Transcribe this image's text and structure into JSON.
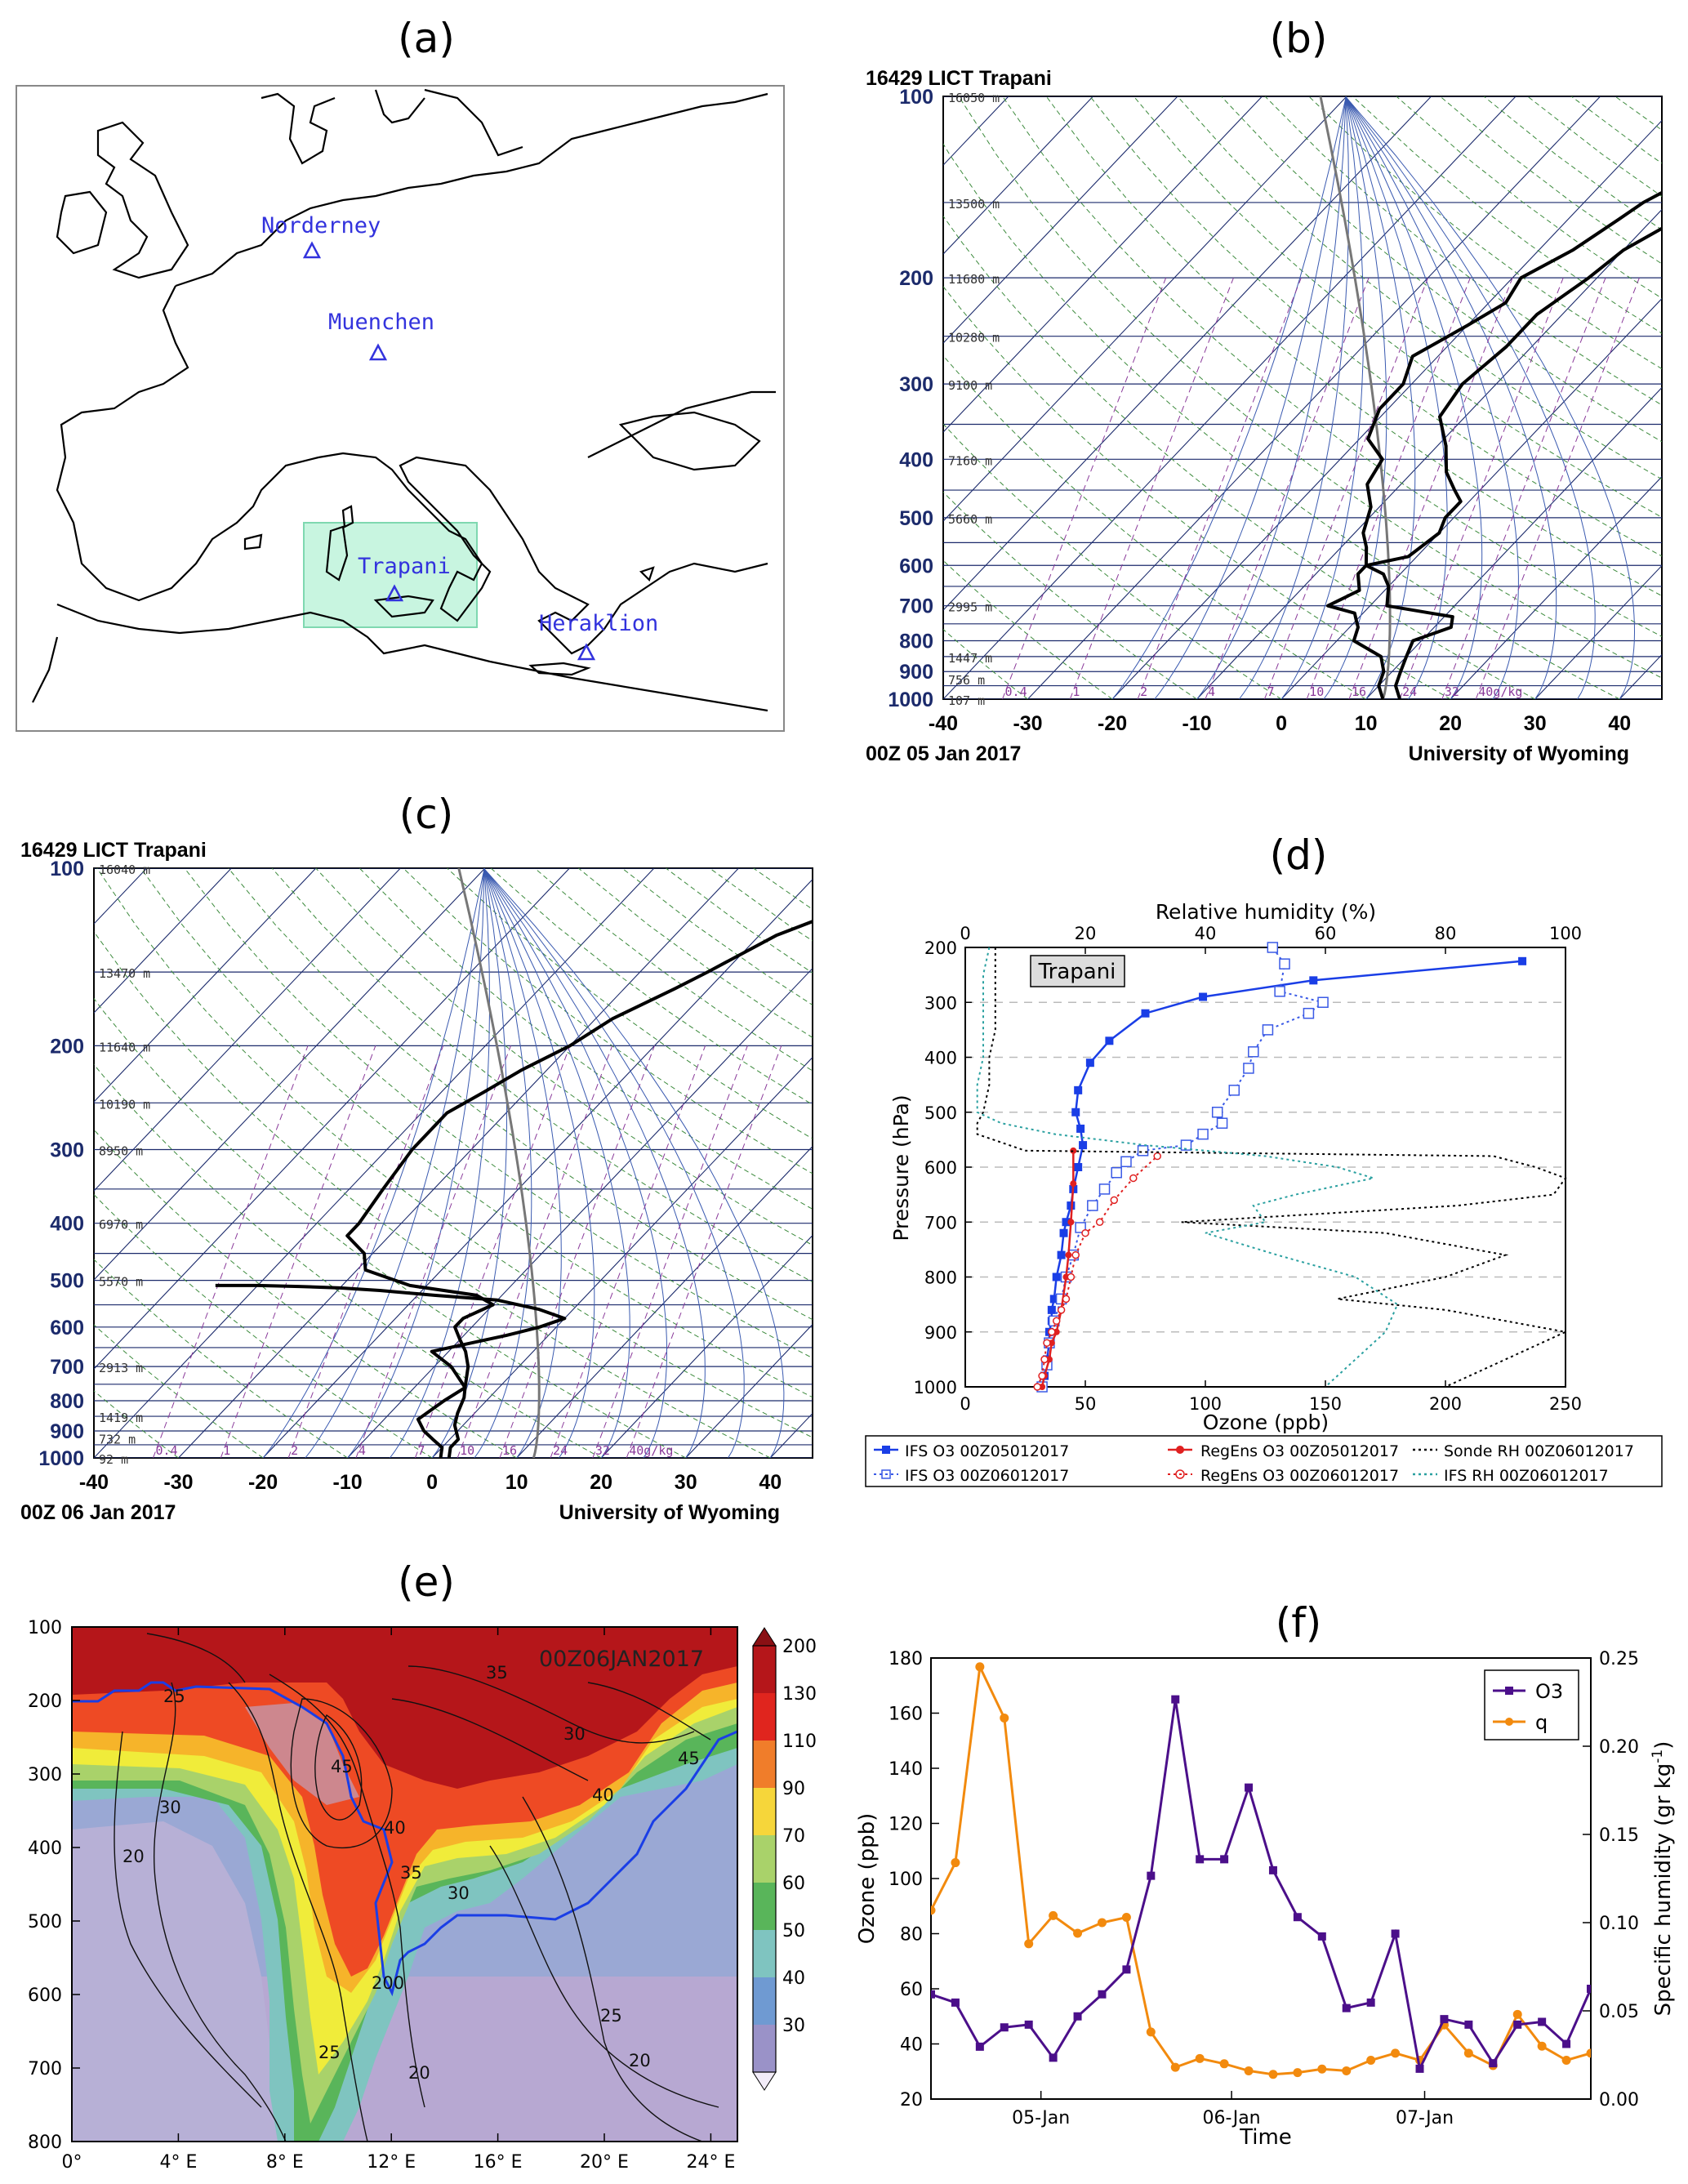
{
  "panels": {
    "a": {
      "label": "(a)",
      "stations": [
        {
          "name": "Norderney"
        },
        {
          "name": "Muenchen"
        },
        {
          "name": "Trapani"
        },
        {
          "name": "Heraklion"
        }
      ],
      "colors": {
        "station": "#3333dd",
        "box": "#c8f5e0",
        "coast": "#000000"
      }
    },
    "b": {
      "label": "(b)",
      "station": "16429 LICT Trapani",
      "time": "00Z 05 Jan 2017",
      "credit": "University of Wyoming",
      "pressure_ticks": [
        "100",
        "200",
        "300",
        "400",
        "500",
        "600",
        "700",
        "800",
        "900",
        "1000"
      ],
      "temp_ticks": [
        "-40",
        "-30",
        "-20",
        "-10",
        "0",
        "10",
        "20",
        "30",
        "40"
      ],
      "heights": [
        "16050 m",
        "13500 m",
        "11680 m",
        "10280 m",
        "9100 m",
        "7160 m",
        "5660 m",
        "2995 m",
        "1447 m",
        "756 m",
        "107 m"
      ],
      "mixing": [
        "0.4",
        "1",
        "2",
        "4",
        "7",
        "10",
        "16",
        "24",
        "32",
        "40g/kg"
      ]
    },
    "c": {
      "label": "(c)",
      "station": "16429 LICT Trapani",
      "time": "00Z 06 Jan 2017",
      "credit": "University of Wyoming",
      "pressure_ticks": [
        "100",
        "200",
        "300",
        "400",
        "500",
        "600",
        "700",
        "800",
        "900",
        "1000"
      ],
      "temp_ticks": [
        "-40",
        "-30",
        "-20",
        "-10",
        "0",
        "10",
        "20",
        "30",
        "40"
      ],
      "heights": [
        "16040 m",
        "13470 m",
        "11640 m",
        "10190 m",
        "8950 m",
        "6970 m",
        "5570 m",
        "2913 m",
        "1419 m",
        "732 m",
        "92 m"
      ],
      "mixing": [
        "0.4",
        "1",
        "2",
        "4",
        "7",
        "10",
        "16",
        "24",
        "32",
        "40g/kg"
      ]
    },
    "d": {
      "label": "(d)",
      "station_box": "Trapani",
      "xlabel_bottom": "Ozone (ppb)",
      "xlabel_top": "Relative humidity (%)",
      "ylabel": "Pressure (hPa)",
      "x_ticks_bottom": [
        "0",
        "50",
        "100",
        "150",
        "200",
        "250"
      ],
      "x_ticks_top": [
        "0",
        "20",
        "40",
        "60",
        "80",
        "100"
      ],
      "y_ticks": [
        "200",
        "300",
        "400",
        "500",
        "600",
        "700",
        "800",
        "900",
        "1000"
      ],
      "legend": [
        "IFS O3 00Z05012017",
        "RegEns O3 00Z05012017",
        "Sonde RH 00Z06012017",
        "IFS O3 00Z06012017",
        "RegEns O3 00Z06012017",
        "IFS RH 00Z06012017"
      ]
    },
    "e": {
      "label": "(e)",
      "annotation": "00Z06JAN2017",
      "y_ticks": [
        "100",
        "200",
        "300",
        "400",
        "500",
        "600",
        "700",
        "800"
      ],
      "x_ticks": [
        "0°",
        "4° E",
        "8° E",
        "12° E",
        "16° E",
        "20° E",
        "24° E"
      ],
      "colorbar_ticks": [
        "200",
        "130",
        "110",
        "90",
        "70",
        "60",
        "50",
        "40",
        "30"
      ],
      "contour_labels": [
        "25",
        "30",
        "35",
        "45",
        "40",
        "35",
        "30",
        "20",
        "30",
        "25",
        "20",
        "200",
        "25",
        "20",
        "45",
        "40",
        "35",
        "30",
        "25",
        "20"
      ]
    },
    "f": {
      "label": "(f)",
      "ylabel_left": "Ozone (ppb)",
      "ylabel_right": "Specific humidity (gr kg",
      "ylabel_right_sup": "-1",
      "ylabel_right_end": ")",
      "xlabel": "Time",
      "y_ticks_left": [
        "20",
        "40",
        "60",
        "80",
        "100",
        "120",
        "140",
        "160",
        "180"
      ],
      "y_ticks_right": [
        "0.00",
        "0.05",
        "0.10",
        "0.15",
        "0.20",
        "0.25"
      ],
      "x_ticks": [
        "05-Jan",
        "06-Jan",
        "07-Jan"
      ],
      "legend": [
        "O3",
        "q"
      ]
    }
  },
  "chart_data": [
    {
      "type": "map",
      "panel": "a",
      "stations": [
        "Norderney",
        "Muenchen",
        "Trapani",
        "Heraklion"
      ]
    },
    {
      "type": "line",
      "panel": "b",
      "title": "16429 LICT Trapani",
      "xlabel": "",
      "ylabel": "",
      "xlim": [
        -40,
        45
      ],
      "ylim": [
        1000,
        100
      ],
      "series": [
        {
          "name": "temperature",
          "x": [
            14,
            12,
            11,
            10,
            9,
            12,
            11,
            8,
            2,
            0,
            -2,
            -5,
            -1,
            0,
            -1,
            -1,
            -3,
            -6,
            -9,
            -13,
            -14,
            -13,
            -13,
            -11,
            -10,
            -7,
            -4,
            -1,
            2,
            5,
            12
          ],
          "p": [
            1000,
            950,
            900,
            850,
            800,
            760,
            730,
            720,
            700,
            650,
            620,
            600,
            580,
            530,
            500,
            470,
            450,
            420,
            380,
            340,
            300,
            260,
            230,
            200,
            180,
            160,
            145,
            130,
            115,
            105,
            100
          ]
        },
        {
          "name": "dewpoint",
          "x": [
            12,
            10,
            9,
            7,
            2,
            1,
            0,
            -1,
            -5,
            -3,
            -5,
            -5,
            -7,
            -9,
            -11,
            -14,
            -15,
            -19,
            -21,
            -21,
            -23,
            -20,
            -18,
            -19,
            -16,
            -14,
            -13,
            -11,
            -9,
            -7
          ],
          "p": [
            1000,
            950,
            900,
            850,
            800,
            760,
            740,
            720,
            700,
            660,
            620,
            600,
            560,
            530,
            480,
            440,
            400,
            370,
            330,
            300,
            270,
            240,
            220,
            200,
            180,
            160,
            150,
            140,
            120,
            100
          ]
        }
      ]
    },
    {
      "type": "line",
      "panel": "c",
      "title": "16429 LICT Trapani",
      "xlabel": "",
      "ylabel": "",
      "xlim": [
        -40,
        45
      ],
      "ylim": [
        1000,
        100
      ],
      "series": [
        {
          "name": "temperature",
          "x": [
            2,
            1,
            1,
            -1,
            -2,
            -3,
            -4,
            -6,
            -8,
            -10,
            -12,
            -12,
            -10,
            -13,
            -22,
            -29,
            -31,
            -35,
            -35,
            -36,
            -37,
            -37,
            -35,
            -33,
            -30,
            -28,
            -24,
            -22,
            -18,
            -14,
            -10,
            -4
          ],
          "p": [
            1000,
            960,
            930,
            880,
            840,
            790,
            760,
            700,
            660,
            630,
            600,
            580,
            550,
            530,
            510,
            480,
            450,
            420,
            400,
            350,
            300,
            260,
            240,
            220,
            200,
            180,
            160,
            150,
            130,
            120,
            110,
            100
          ]
        },
        {
          "name": "dewpoint",
          "x": [
            1,
            0,
            -2,
            -4,
            -6,
            -5,
            -4,
            -8,
            -12,
            -5,
            -2,
            0,
            -4,
            -10,
            -18,
            -25,
            -30,
            -35,
            -40,
            -45
          ],
          "p": [
            1000,
            960,
            930,
            900,
            860,
            800,
            760,
            700,
            660,
            620,
            600,
            580,
            560,
            540,
            530,
            520,
            515,
            512,
            510,
            510
          ]
        }
      ]
    },
    {
      "type": "line",
      "panel": "d",
      "xlabel": "Ozone (ppb)",
      "ylabel": "Pressure (hPa)",
      "xlim": [
        0,
        250
      ],
      "ylim": [
        1000,
        200
      ],
      "series": [
        {
          "name": "IFS O3 00Z05012017",
          "x": [
            32,
            33,
            34,
            35,
            35,
            36,
            36,
            37,
            38,
            40,
            41,
            42,
            44,
            45,
            47,
            49,
            48,
            46,
            47,
            52,
            60,
            75,
            99,
            145,
            232
          ],
          "p": [
            1000,
            980,
            950,
            920,
            900,
            880,
            860,
            840,
            800,
            760,
            720,
            700,
            670,
            640,
            600,
            560,
            530,
            500,
            460,
            410,
            370,
            320,
            290,
            260,
            225
          ]
        },
        {
          "name": "IFS O3 00Z06012017",
          "x": [
            32,
            34,
            35,
            37,
            40,
            42,
            45,
            48,
            53,
            58,
            63,
            67,
            74,
            92,
            99,
            107,
            105,
            112,
            118,
            120,
            126,
            143,
            149,
            131,
            133,
            128
          ],
          "p": [
            1000,
            960,
            920,
            880,
            840,
            800,
            760,
            710,
            670,
            640,
            610,
            590,
            570,
            560,
            540,
            520,
            500,
            460,
            420,
            390,
            350,
            320,
            300,
            280,
            230,
            200
          ]
        },
        {
          "name": "RegEns O3 00Z05012017",
          "x": [
            32,
            33,
            35,
            36,
            38,
            40,
            42,
            43,
            44,
            45,
            45
          ],
          "p": [
            1000,
            980,
            950,
            920,
            900,
            860,
            800,
            760,
            700,
            630,
            570
          ]
        },
        {
          "name": "RegEns O3 00Z06012017",
          "x": [
            30,
            32,
            33,
            34,
            36,
            38,
            40,
            42,
            44,
            46,
            50,
            56,
            62,
            70,
            80
          ],
          "p": [
            1000,
            980,
            950,
            920,
            900,
            880,
            860,
            840,
            800,
            760,
            720,
            700,
            660,
            620,
            580
          ]
        },
        {
          "name": "Sonde RH 00Z06012017",
          "x_rh": [
            5,
            5,
            5,
            5,
            4,
            4,
            3,
            2,
            2,
            10,
            88,
            95,
            100,
            98,
            82,
            36,
            70,
            90,
            80,
            62,
            80,
            90,
            100,
            80
          ],
          "p": [
            200,
            250,
            300,
            350,
            400,
            450,
            500,
            520,
            540,
            570,
            580,
            600,
            620,
            650,
            670,
            700,
            720,
            760,
            800,
            840,
            860,
            880,
            900,
            1000
          ]
        },
        {
          "name": "IFS RH 00Z06012017",
          "x_rh": [
            4,
            3,
            3,
            3,
            3,
            2,
            2,
            6,
            15,
            30,
            50,
            62,
            68,
            55,
            48,
            50,
            40,
            52,
            65,
            72,
            70,
            60
          ],
          "p": [
            200,
            250,
            300,
            350,
            400,
            450,
            500,
            520,
            540,
            560,
            580,
            600,
            620,
            650,
            670,
            700,
            720,
            760,
            800,
            850,
            900,
            1000
          ]
        }
      ]
    },
    {
      "type": "heatmap",
      "panel": "e",
      "xlabel": "",
      "ylabel": "",
      "xlim": [
        0,
        25
      ],
      "ylim": [
        800,
        100
      ],
      "colorbar": [
        200,
        130,
        110,
        90,
        70,
        60,
        50,
        40,
        30
      ],
      "annotation": "00Z06JAN2017"
    },
    {
      "type": "line",
      "panel": "f",
      "xlabel": "Time",
      "ylabel": "Ozone (ppb)",
      "ylabel_right": "Specific humidity (gr kg-1)",
      "xlim": [
        0,
        27
      ],
      "ylim": [
        20,
        180
      ],
      "ylim_right": [
        0,
        0.25
      ],
      "x_ticks": [
        "05-Jan",
        "06-Jan",
        "07-Jan"
      ],
      "series": [
        {
          "name": "O3",
          "x": [
            0,
            1,
            2,
            3,
            4,
            5,
            6,
            7,
            8,
            9,
            10,
            11,
            12,
            13,
            14,
            15,
            16,
            17,
            18,
            19,
            20,
            21,
            22,
            23,
            24,
            25,
            26,
            27
          ],
          "values": [
            58,
            55,
            39,
            46,
            47,
            35,
            50,
            58,
            67,
            101,
            165,
            107,
            107,
            133,
            103,
            86,
            79,
            53,
            55,
            80,
            31,
            49,
            47,
            33,
            47,
            48,
            40,
            60
          ]
        },
        {
          "name": "q",
          "x": [
            0,
            1,
            2,
            3,
            4,
            5,
            6,
            7,
            8,
            9,
            10,
            11,
            12,
            13,
            14,
            15,
            16,
            17,
            18,
            19,
            20,
            21,
            22,
            23,
            24,
            25,
            26,
            27
          ],
          "values": [
            0.107,
            0.134,
            0.245,
            0.216,
            0.088,
            0.104,
            0.094,
            0.1,
            0.103,
            0.038,
            0.018,
            0.023,
            0.02,
            0.016,
            0.014,
            0.015,
            0.017,
            0.016,
            0.022,
            0.026,
            0.022,
            0.042,
            0.026,
            0.019,
            0.048,
            0.03,
            0.022,
            0.026
          ]
        }
      ]
    }
  ]
}
